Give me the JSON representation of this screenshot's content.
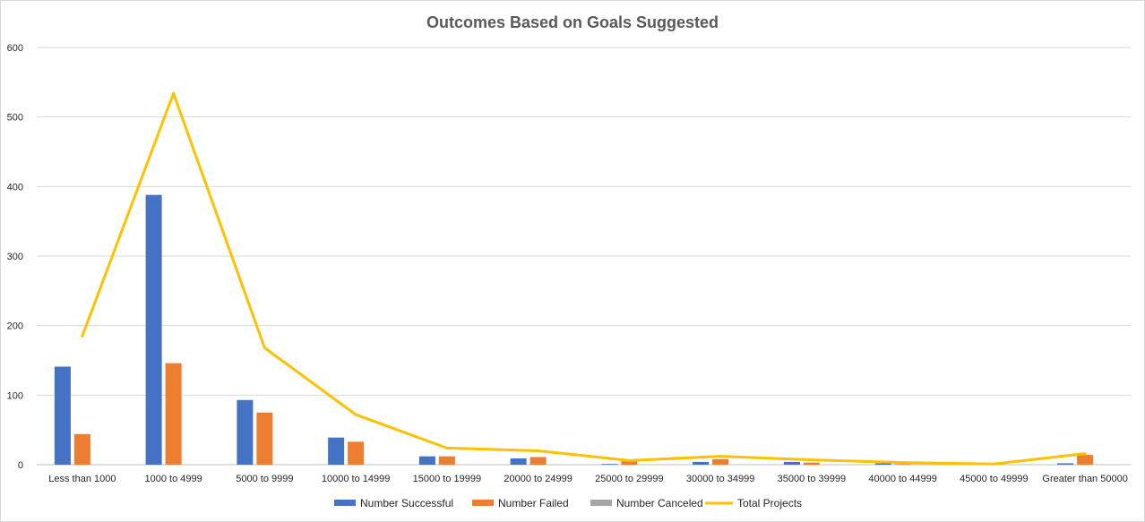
{
  "chart_data": {
    "type": "bar",
    "title": "Outcomes Based on Goals Suggested",
    "xlabel": "",
    "ylabel": "",
    "ylim": [
      0,
      600
    ],
    "yticks": [
      "0",
      "100",
      "200",
      "300",
      "400",
      "500",
      "600"
    ],
    "grid": true,
    "legend_position": "bottom",
    "categories": [
      "Less than 1000",
      "1000 to 4999",
      "5000 to 9999",
      "10000 to 14999",
      "15000 to 19999",
      "20000 to 24999",
      "25000 to 29999",
      "30000 to 34999",
      "35000 to 39999",
      "40000 to 44999",
      "45000 to 49999",
      "Greater than 50000"
    ],
    "series": [
      {
        "name": "Number Successful",
        "type": "bar",
        "color": "#4472c4",
        "values": [
          141,
          388,
          93,
          39,
          12,
          9,
          1,
          4,
          4,
          2,
          0,
          2
        ]
      },
      {
        "name": "Number Failed",
        "type": "bar",
        "color": "#ed7d31",
        "values": [
          44,
          146,
          75,
          33,
          12,
          11,
          5,
          8,
          3,
          1,
          1,
          14
        ]
      },
      {
        "name": "Number Canceled",
        "type": "bar",
        "color": "#a5a5a5",
        "values": [
          0,
          0,
          0,
          0,
          0,
          0,
          0,
          0,
          0,
          0,
          0,
          0
        ]
      },
      {
        "name": "Total Projects",
        "type": "line",
        "color": "#ffc000",
        "values": [
          185,
          534,
          168,
          72,
          24,
          20,
          6,
          12,
          7,
          3,
          1,
          16
        ]
      }
    ]
  }
}
